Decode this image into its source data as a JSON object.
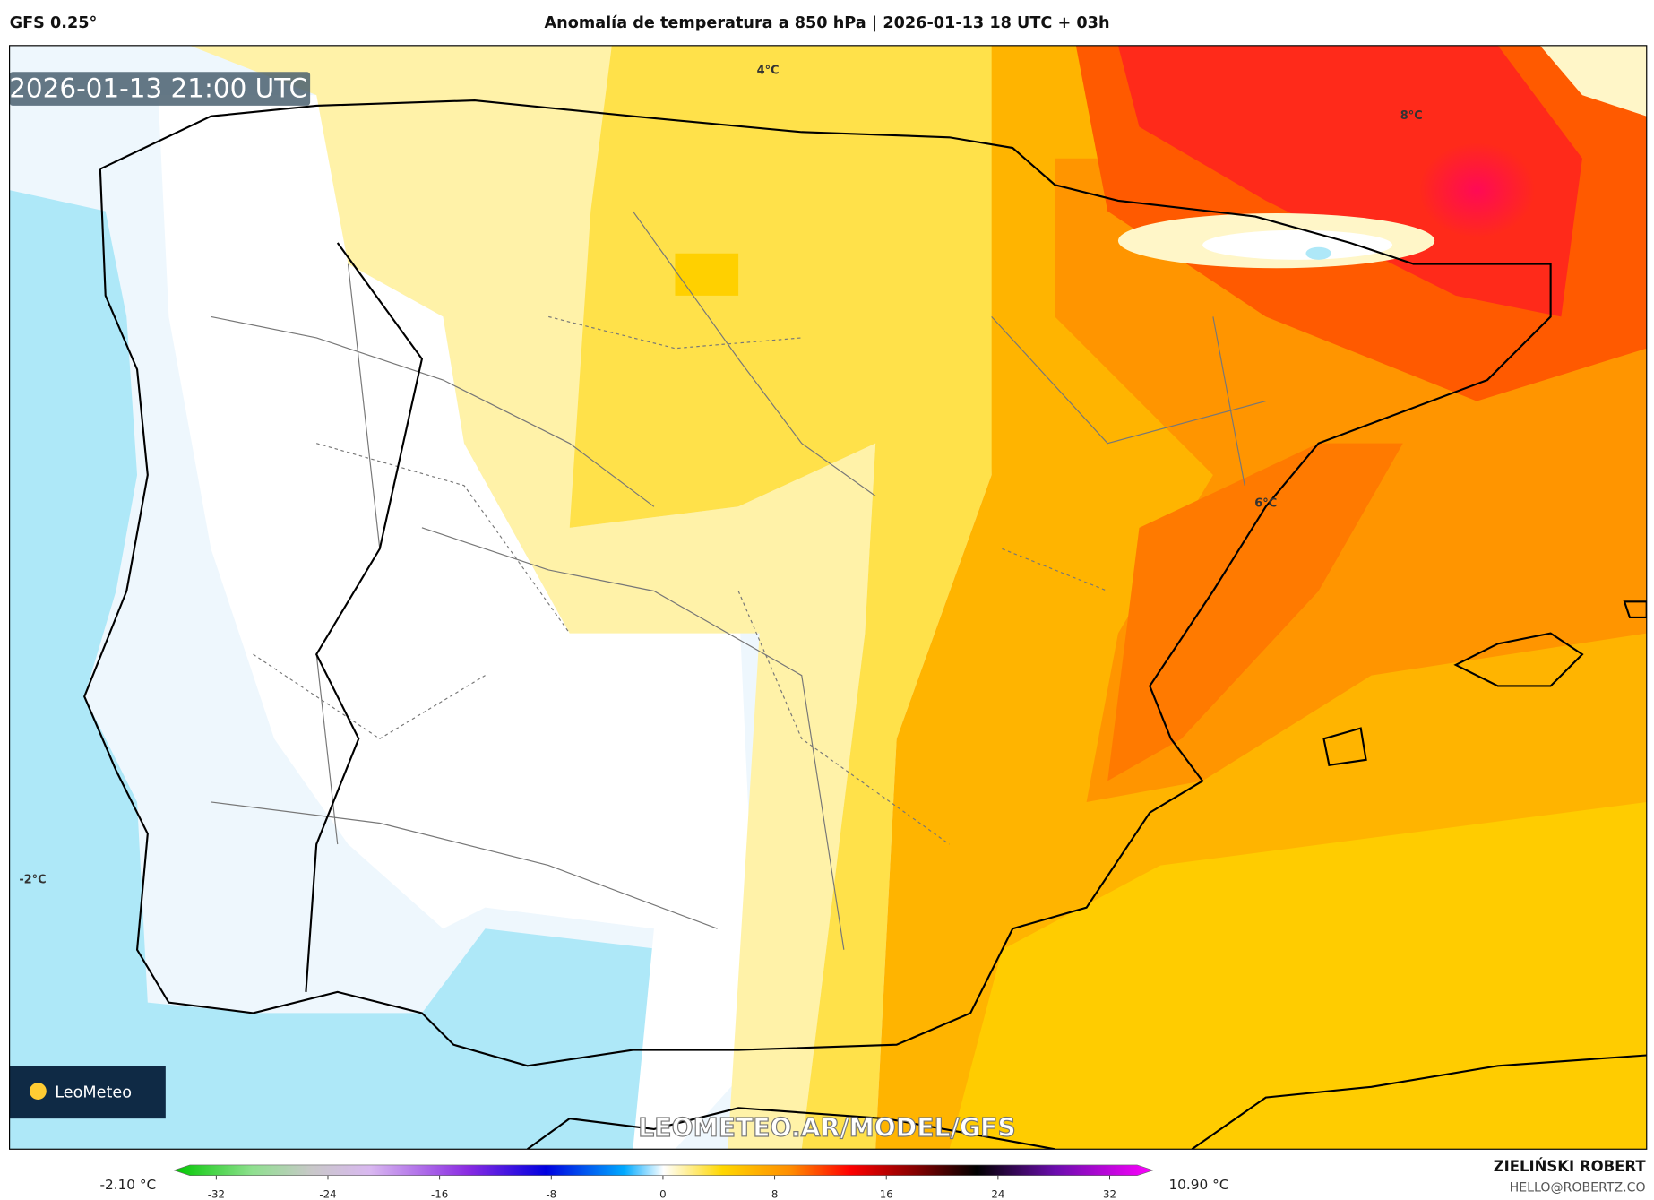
{
  "header": {
    "model": "GFS 0.25°",
    "title": "Anomalía de temperatura a 850 hPa | 2026-01-13 18 UTC + 03h"
  },
  "map": {
    "timestamp": "2026-01-13 21:00 UTC",
    "contour_labels": [
      "4°C",
      "8°C",
      "6°C",
      "-2°C"
    ],
    "logo": "LeoMeteo",
    "watermark": "LEOMETEO.AR/MODEL/GFS"
  },
  "colorbar": {
    "min_label": "-2.10 °C",
    "max_label": "10.90 °C",
    "ticks": [
      -32,
      -24,
      -16,
      -8,
      0,
      8,
      16,
      24,
      32
    ]
  },
  "credits": {
    "author": "ZIELIŃSKI ROBERT",
    "email": "HELLO@ROBERTZ.CO"
  }
}
